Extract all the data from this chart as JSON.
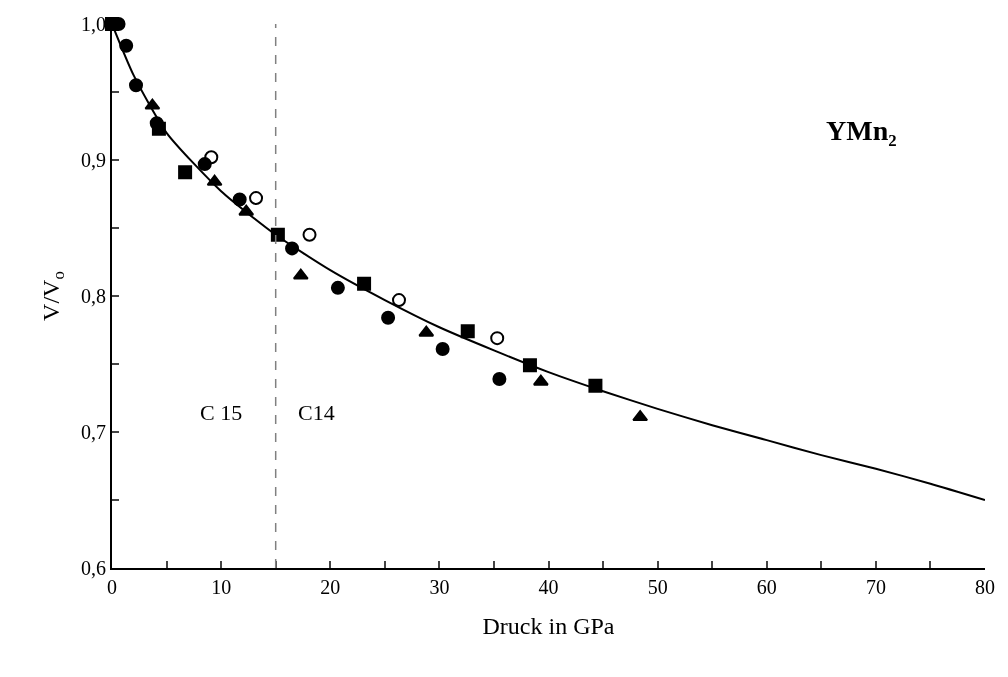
{
  "chart_data": {
    "type": "scatter",
    "xlabel": "Druck in GPa",
    "ylabel": "V/V$_{o}$",
    "xlim": [
      0,
      80
    ],
    "ylim": [
      0.6,
      1.0
    ],
    "xticks": [
      0,
      {
        "value": 5,
        "label": null
      },
      10,
      {
        "value": 15,
        "label": null
      },
      20,
      {
        "value": 25,
        "label": null
      },
      30,
      {
        "value": 35,
        "label": null
      },
      40,
      {
        "value": 45,
        "label": null
      },
      50,
      {
        "value": 55,
        "label": null
      },
      60,
      {
        "value": 65,
        "label": null
      },
      70,
      {
        "value": 75,
        "label": null
      },
      80
    ],
    "yticks": [
      {
        "value": 0.6,
        "label": "0,6"
      },
      {
        "value": 0.65,
        "label": null
      },
      {
        "value": 0.7,
        "label": "0,7"
      },
      {
        "value": 0.75,
        "label": null
      },
      {
        "value": 0.8,
        "label": "0,8"
      },
      {
        "value": 0.85,
        "label": null
      },
      {
        "value": 0.9,
        "label": "0,9"
      },
      {
        "value": 0.95,
        "label": null
      },
      {
        "value": 1.0,
        "label": "1,0"
      }
    ],
    "grid": false,
    "series": [
      {
        "marker": "circle",
        "color": "#000000",
        "x": [
          0.6,
          1.3,
          2.2,
          4.1,
          8.5,
          11.7,
          16.5,
          20.7,
          25.3,
          30.3,
          35.5
        ],
        "values": [
          1.0,
          0.984,
          0.955,
          0.927,
          0.897,
          0.871,
          0.835,
          0.806,
          0.784,
          0.761,
          0.739
        ]
      },
      {
        "marker": "square",
        "color": "#000000",
        "x": [
          0,
          4.3,
          6.7,
          15.2,
          23.1,
          32.6,
          38.3,
          44.3
        ],
        "values": [
          1.0,
          0.923,
          0.891,
          0.845,
          0.809,
          0.774,
          0.749,
          0.734
        ]
      },
      {
        "marker": "triangle",
        "color": "#000000",
        "x": [
          3.7,
          9.4,
          12.3,
          17.3,
          28.8,
          39.3,
          48.4
        ],
        "values": [
          0.94,
          0.884,
          0.862,
          0.815,
          0.773,
          0.737,
          0.711
        ]
      },
      {
        "marker": "circle-open",
        "color": "#000000",
        "x": [
          9.1,
          13.2,
          18.1,
          26.3,
          35.3
        ],
        "values": [
          0.902,
          0.872,
          0.845,
          0.797,
          0.769
        ]
      },
      {
        "type": "line",
        "marker": "none",
        "line_style": "solid",
        "color": "#000000",
        "x": [
          0,
          2,
          5,
          10,
          15,
          20,
          25,
          30,
          35,
          40,
          45,
          50,
          55,
          60,
          65,
          70,
          75,
          80
        ],
        "values": [
          1.0,
          0.962,
          0.92,
          0.877,
          0.845,
          0.819,
          0.797,
          0.777,
          0.76,
          0.744,
          0.73,
          0.717,
          0.705,
          0.694,
          0.683,
          0.673,
          0.662,
          0.65
        ]
      }
    ],
    "ref_lines": [
      {
        "axis": "x",
        "value": 15,
        "label": null,
        "color": "#808080",
        "line_style": "dashed"
      }
    ],
    "annotations": [
      "YMn₂",
      "C 15",
      "C14"
    ]
  }
}
